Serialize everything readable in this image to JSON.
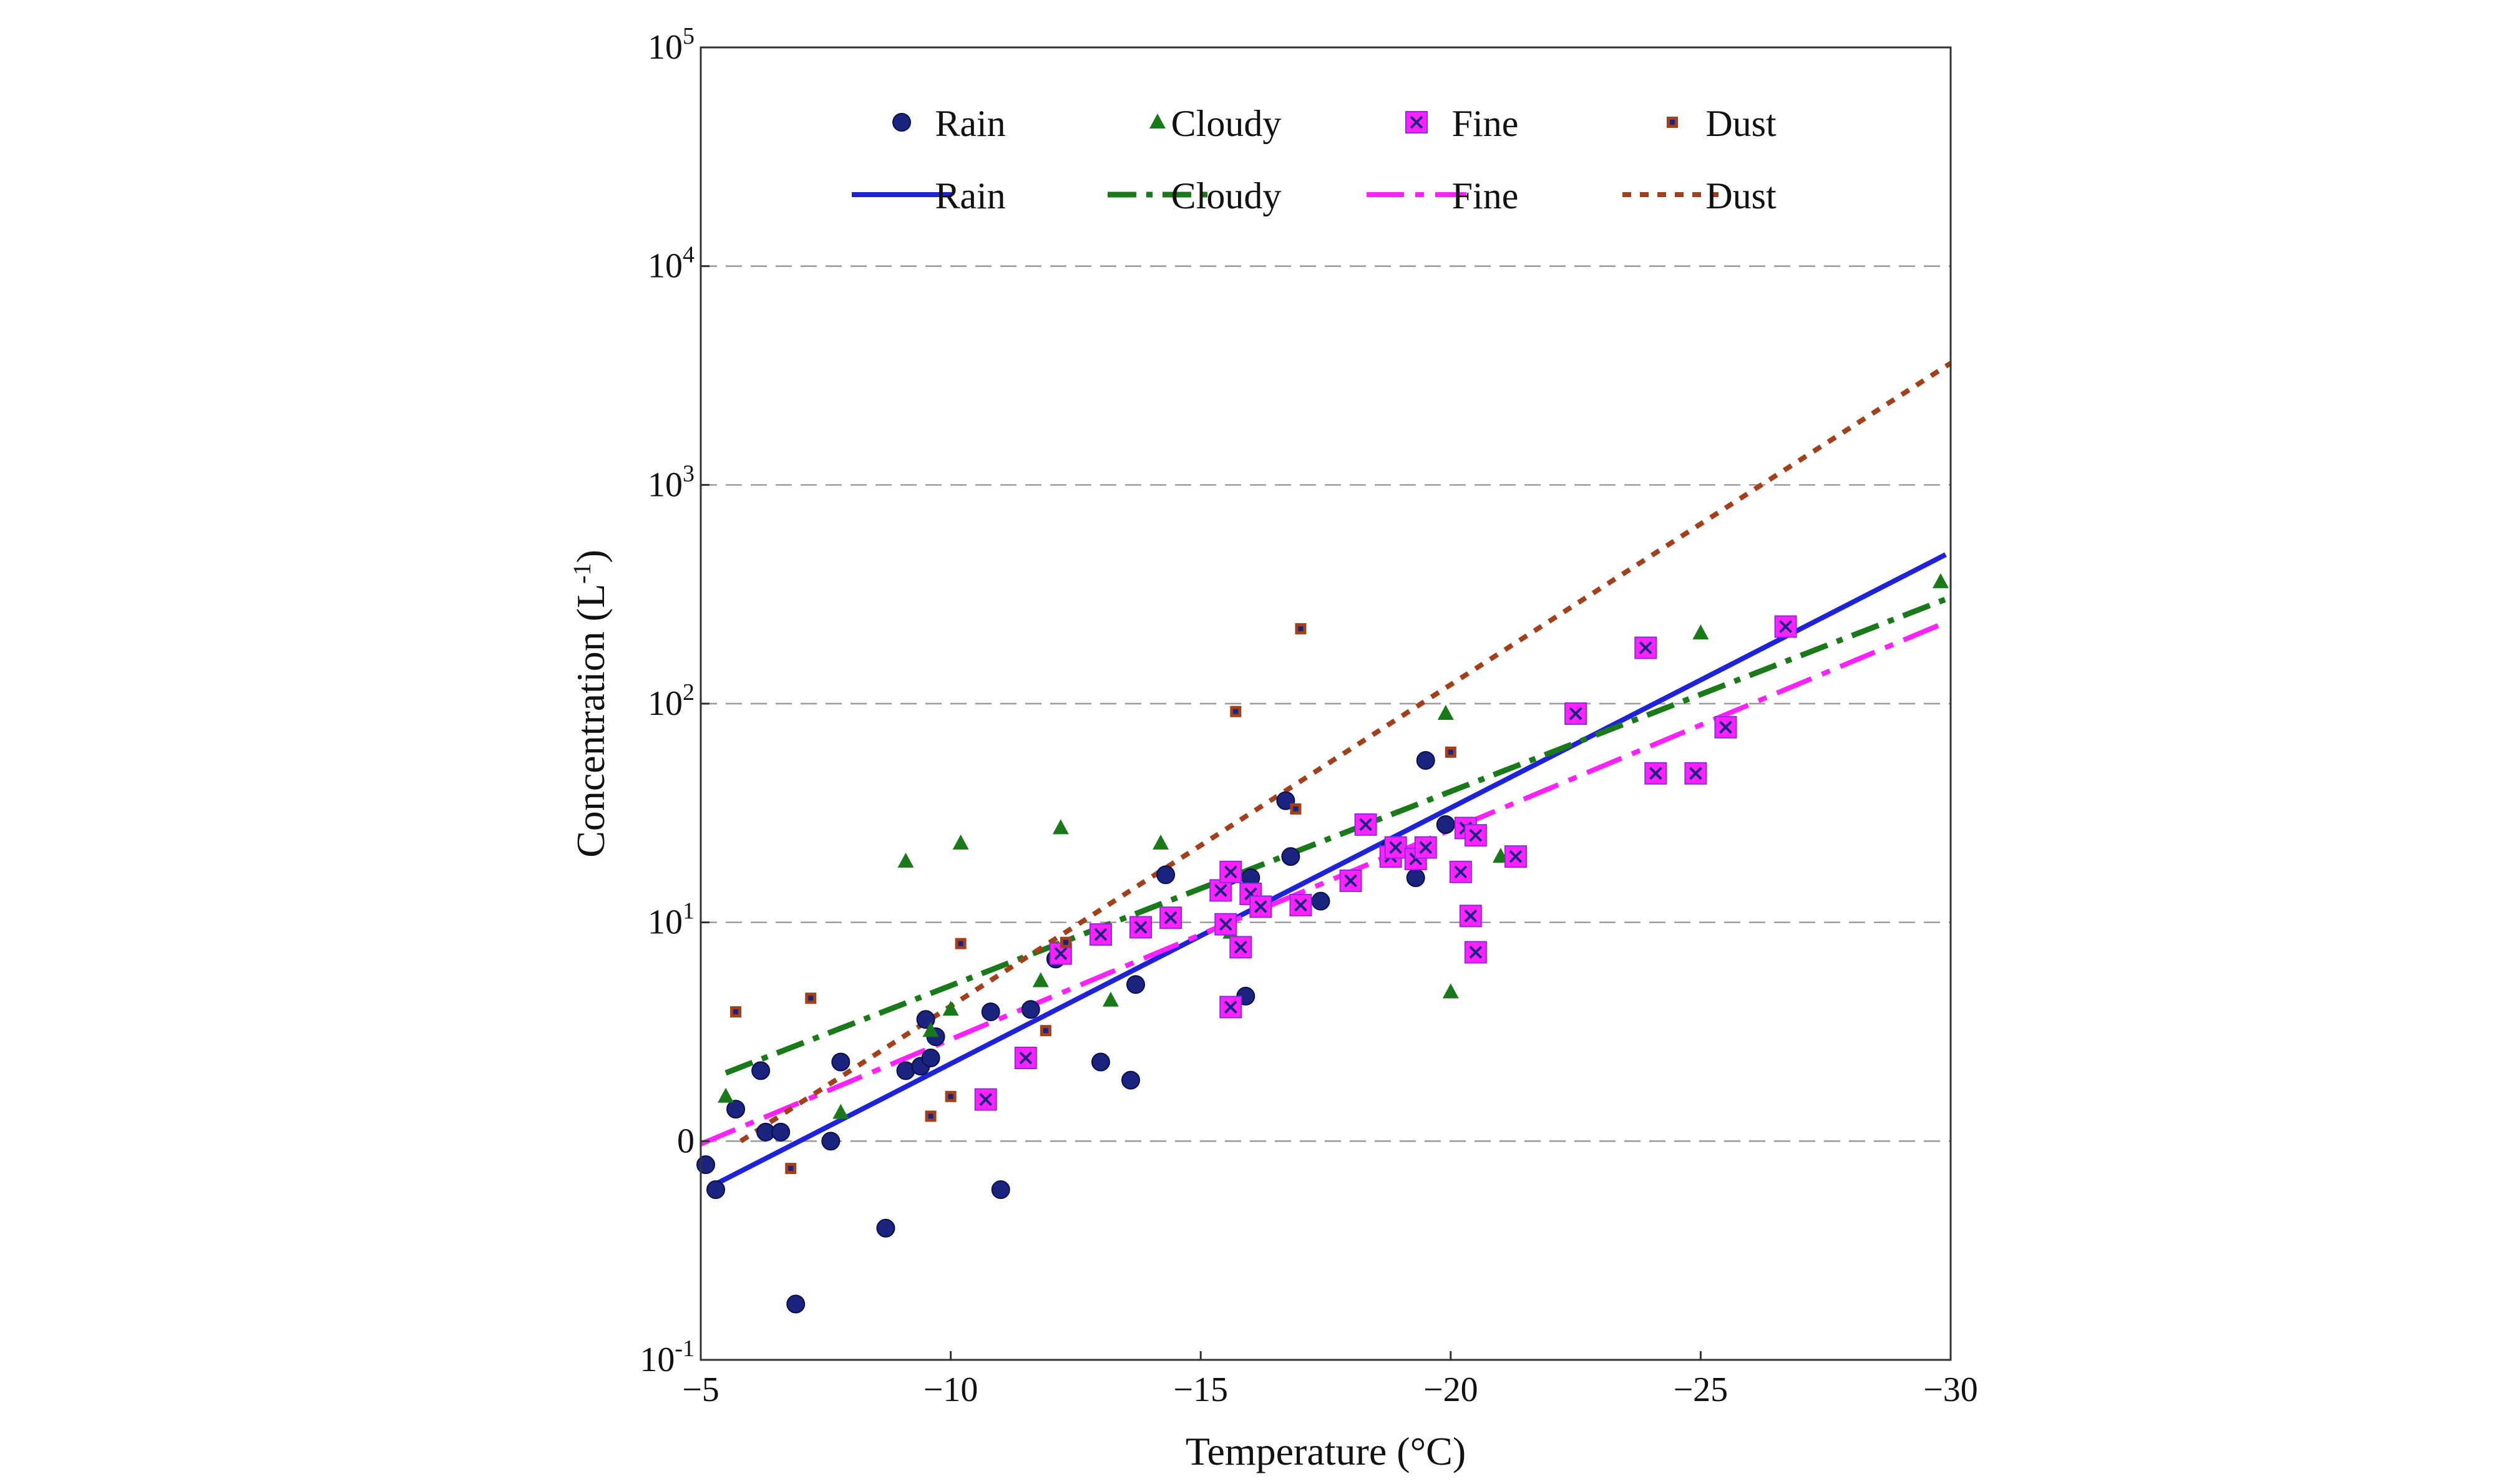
{
  "chart_data": {
    "type": "scatter",
    "xlabel": "Temperature (°C)",
    "ylabel_main": "Concentration (L",
    "ylabel_sup": "-1",
    "ylabel_end": ")",
    "xlim": [
      -5,
      -30
    ],
    "x_ticks": [
      {
        "value": -5,
        "label": "−5"
      },
      {
        "value": -10,
        "label": "−10"
      },
      {
        "value": -15,
        "label": "−15"
      },
      {
        "value": -20,
        "label": "−20"
      },
      {
        "value": -25,
        "label": "−25"
      },
      {
        "value": -30,
        "label": "−30"
      }
    ],
    "y_scale": "log",
    "ylim": [
      0.1,
      100000
    ],
    "y_ticks": [
      {
        "value": 0.1,
        "base": "10",
        "exp": "-1"
      },
      {
        "value": 1,
        "base": "0",
        "exp": ""
      },
      {
        "value": 10,
        "base": "10",
        "exp": "1"
      },
      {
        "value": 100,
        "base": "10",
        "exp": "2"
      },
      {
        "value": 1000,
        "base": "10",
        "exp": "3"
      },
      {
        "value": 10000,
        "base": "10",
        "exp": "4"
      },
      {
        "value": 100000,
        "base": "10",
        "exp": "5"
      }
    ],
    "grid": "horizontal dashed",
    "legend_position": "top",
    "colors": {
      "rain": "#1a237e",
      "rain_line": "#1e22d8",
      "cloudy": "#1a7a1a",
      "fine": "#ff22ff",
      "fine_edge": "#8a2be2",
      "dust": "#a3401c"
    },
    "series": [
      {
        "name": "Rain",
        "kind": "points",
        "marker": "circle",
        "points": [
          [
            -5.1,
            0.78
          ],
          [
            -5.3,
            0.6
          ],
          [
            -5.7,
            1.4
          ],
          [
            -6.2,
            2.1
          ],
          [
            -6.3,
            1.1
          ],
          [
            -6.6,
            1.1
          ],
          [
            -6.9,
            0.18
          ],
          [
            -7.6,
            1.0
          ],
          [
            -7.8,
            2.3
          ],
          [
            -8.7,
            0.4
          ],
          [
            -9.1,
            2.1
          ],
          [
            -9.4,
            2.2
          ],
          [
            -9.5,
            3.6
          ],
          [
            -9.6,
            2.4
          ],
          [
            -9.7,
            3.0
          ],
          [
            -10.8,
            3.9
          ],
          [
            -11.0,
            0.6
          ],
          [
            -11.6,
            4.0
          ],
          [
            -12.1,
            6.8
          ],
          [
            -13.0,
            2.3
          ],
          [
            -13.6,
            1.9
          ],
          [
            -13.7,
            5.2
          ],
          [
            -14.3,
            16.5
          ],
          [
            -15.6,
            16.4
          ],
          [
            -15.9,
            4.6
          ],
          [
            -16.0,
            16.0
          ],
          [
            -16.7,
            36.0
          ],
          [
            -16.8,
            20.0
          ],
          [
            -17.4,
            12.5
          ],
          [
            -18.8,
            22.0
          ],
          [
            -19.3,
            16.0
          ],
          [
            -19.5,
            55.0
          ],
          [
            -19.9,
            28.0
          ]
        ]
      },
      {
        "name": "Cloudy",
        "kind": "points",
        "marker": "triangle",
        "points": [
          [
            -5.5,
            1.6
          ],
          [
            -7.8,
            1.35
          ],
          [
            -9.1,
            19.0
          ],
          [
            -9.6,
            3.2
          ],
          [
            -10.0,
            4.0
          ],
          [
            -10.2,
            23.0
          ],
          [
            -11.8,
            5.4
          ],
          [
            -12.2,
            27.0
          ],
          [
            -13.2,
            4.4
          ],
          [
            -14.2,
            23.0
          ],
          [
            -15.6,
            9.0
          ],
          [
            -19.9,
            90.0
          ],
          [
            -20.0,
            4.8
          ],
          [
            -21.0,
            20.0
          ],
          [
            -25.0,
            210.0
          ],
          [
            -29.8,
            360.0
          ]
        ]
      },
      {
        "name": "Fine",
        "kind": "points",
        "marker": "square",
        "points": [
          [
            -10.7,
            1.55
          ],
          [
            -11.5,
            2.4
          ],
          [
            -12.2,
            7.2
          ],
          [
            -13.0,
            8.8
          ],
          [
            -13.8,
            9.5
          ],
          [
            -14.4,
            10.5
          ],
          [
            -15.4,
            14.0
          ],
          [
            -15.5,
            9.8
          ],
          [
            -15.6,
            17.0
          ],
          [
            -15.6,
            4.1
          ],
          [
            -15.8,
            7.7
          ],
          [
            -16.0,
            13.5
          ],
          [
            -16.2,
            11.8
          ],
          [
            -17.0,
            12.0
          ],
          [
            -18.0,
            15.5
          ],
          [
            -18.3,
            28.0
          ],
          [
            -18.8,
            20.0
          ],
          [
            -18.9,
            22.0
          ],
          [
            -19.3,
            19.5
          ],
          [
            -19.5,
            22.0
          ],
          [
            -20.2,
            17.0
          ],
          [
            -20.3,
            27.0
          ],
          [
            -20.4,
            10.7
          ],
          [
            -20.5,
            25.0
          ],
          [
            -20.5,
            7.3
          ],
          [
            -21.3,
            20.0
          ],
          [
            -22.5,
            90.0
          ],
          [
            -23.9,
            180.0
          ],
          [
            -24.1,
            48.0
          ],
          [
            -24.9,
            48.0
          ],
          [
            -25.5,
            78.0
          ],
          [
            -26.7,
            225.0
          ]
        ]
      },
      {
        "name": "Dust",
        "kind": "points",
        "marker": "small-square",
        "points": [
          [
            -5.7,
            3.9
          ],
          [
            -6.8,
            0.75
          ],
          [
            -7.2,
            4.5
          ],
          [
            -9.6,
            1.3
          ],
          [
            -10.0,
            1.6
          ],
          [
            -10.2,
            8.0
          ],
          [
            -11.9,
            3.2
          ],
          [
            -12.3,
            8.1
          ],
          [
            -15.7,
            92.0
          ],
          [
            -16.9,
            33.0
          ],
          [
            -17.0,
            220.0
          ],
          [
            -20.0,
            60.0
          ]
        ]
      },
      {
        "name": "Rain",
        "kind": "fit",
        "style": "solid",
        "x_range": [
          -5.2,
          -29.9
        ],
        "y_range": [
          0.62,
          480
        ]
      },
      {
        "name": "Cloudy",
        "kind": "fit",
        "style": "dash-dot",
        "x_range": [
          -5.5,
          -29.9
        ],
        "y_range": [
          2.05,
          300
        ]
      },
      {
        "name": "Fine",
        "kind": "fit",
        "style": "long-dash-dot",
        "x_range": [
          -5.0,
          -29.8
        ],
        "y_range": [
          0.97,
          230
        ]
      },
      {
        "name": "Dust",
        "kind": "fit",
        "style": "dotted",
        "x_range": [
          -5.8,
          -30.0
        ],
        "y_range": [
          1.0,
          3600
        ]
      }
    ]
  }
}
